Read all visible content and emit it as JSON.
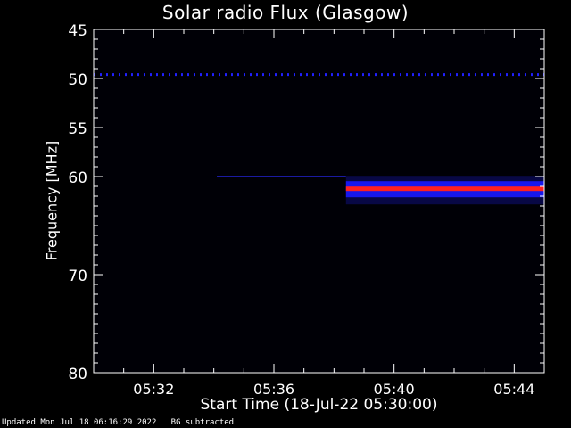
{
  "chart_data": {
    "type": "heatmap",
    "title": "Solar radio Flux (Glasgow)",
    "xlabel": "Start Time (18-Jul-22 05:30:00)",
    "ylabel": "Frequency [MHz]",
    "x_unit": "minutes after 05:30:00",
    "xlim": [
      0,
      15
    ],
    "ylim": [
      45,
      80
    ],
    "y_inverted": true,
    "x_ticks": [
      {
        "value": 2,
        "label": "05:32"
      },
      {
        "value": 6,
        "label": "05:36"
      },
      {
        "value": 10,
        "label": "05:40"
      },
      {
        "value": 14,
        "label": "05:44"
      }
    ],
    "y_ticks": [
      45,
      50,
      55,
      60,
      70,
      80
    ],
    "features": [
      {
        "kind": "dotted-line",
        "frequency": 49.6,
        "start": 0,
        "end": 15,
        "color": "#2020ff"
      },
      {
        "kind": "weak-line",
        "frequency": 60.0,
        "start": 4.1,
        "end": 8.4,
        "color": "#1a1aa0"
      },
      {
        "kind": "emission-band",
        "frequency": 61.2,
        "start": 8.4,
        "end": 15,
        "core_color": "#ff2020",
        "edge_color": "#1a1aff"
      }
    ]
  },
  "footer": {
    "updated": "Updated Mon Jul 18 06:16:29 2022",
    "note": "BG subtracted"
  }
}
